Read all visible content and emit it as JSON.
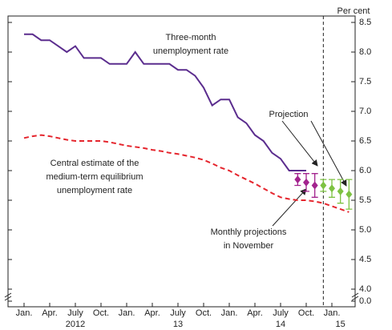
{
  "chart_data": {
    "type": "line",
    "y_label": "Per cent",
    "x": [
      "2012-01",
      "2012-02",
      "2012-03",
      "2012-04",
      "2012-05",
      "2012-06",
      "2012-07",
      "2012-08",
      "2012-09",
      "2012-10",
      "2012-11",
      "2012-12",
      "2013-01",
      "2013-02",
      "2013-03",
      "2013-04",
      "2013-05",
      "2013-06",
      "2013-07",
      "2013-08",
      "2013-09",
      "2013-10",
      "2013-11",
      "2013-12",
      "2014-01",
      "2014-02",
      "2014-03",
      "2014-04",
      "2014-05",
      "2014-06",
      "2014-07",
      "2014-08",
      "2014-09",
      "2014-10",
      "2014-11",
      "2014-12",
      "2015-01",
      "2015-02",
      "2015-03"
    ],
    "xticks": [
      {
        "value": "2012-01",
        "label": "Jan."
      },
      {
        "value": "2012-04",
        "label": "Apr."
      },
      {
        "value": "2012-07",
        "label": "July"
      },
      {
        "value": "2012-10",
        "label": "Oct."
      },
      {
        "value": "2013-01",
        "label": "Jan."
      },
      {
        "value": "2013-04",
        "label": "Apr."
      },
      {
        "value": "2013-07",
        "label": "July"
      },
      {
        "value": "2013-10",
        "label": "Oct."
      },
      {
        "value": "2014-01",
        "label": "Jan."
      },
      {
        "value": "2014-04",
        "label": "Apr."
      },
      {
        "value": "2014-07",
        "label": "July"
      },
      {
        "value": "2014-10",
        "label": "Oct."
      },
      {
        "value": "2015-01",
        "label": "Jan."
      }
    ],
    "year_labels": [
      {
        "value": "2012-07",
        "label": "2012"
      },
      {
        "value": "2013-07",
        "label": "13"
      },
      {
        "value": "2014-07",
        "label": "14"
      },
      {
        "value": "2015-02",
        "label": "15"
      }
    ],
    "ylim": [
      0,
      8.5
    ],
    "axis_break": true,
    "yticks": [
      {
        "value": 0,
        "label": "0.0"
      },
      {
        "value": 4,
        "label": "4.0"
      },
      4.5,
      {
        "value": 5,
        "label": "5.0"
      },
      5.5,
      {
        "value": 6,
        "label": "6.0"
      },
      6.5,
      {
        "value": 7,
        "label": "7.0"
      },
      7.5,
      {
        "value": 8,
        "label": "8.0"
      },
      8.5
    ],
    "projection_start": "2014-12",
    "series": [
      {
        "style": "solid",
        "color": "#5b2d8e",
        "values": [
          8.3,
          8.3,
          8.2,
          8.2,
          8.1,
          8.0,
          8.1,
          7.9,
          7.9,
          7.9,
          7.8,
          7.8,
          7.8,
          8.0,
          7.8,
          7.8,
          7.8,
          7.8,
          7.7,
          7.7,
          7.6,
          7.4,
          7.1,
          7.2,
          7.2,
          6.9,
          6.8,
          6.6,
          6.5,
          6.3,
          6.2,
          6.0,
          6.0,
          6.0,
          null,
          null,
          null,
          null,
          null
        ]
      },
      {
        "style": "dashed",
        "color": "#e5252d",
        "values": [
          6.55,
          6.58,
          6.6,
          6.58,
          6.55,
          6.52,
          6.5,
          6.5,
          6.5,
          6.5,
          6.48,
          6.45,
          6.42,
          6.4,
          6.38,
          6.35,
          6.33,
          6.3,
          6.28,
          6.25,
          6.22,
          6.18,
          6.12,
          6.05,
          6.0,
          5.92,
          5.85,
          5.78,
          5.7,
          5.62,
          5.55,
          5.52,
          5.5,
          5.5,
          5.48,
          5.45,
          5.4,
          5.35,
          5.3
        ]
      },
      {
        "style": "markers",
        "color": "#a3238e",
        "values": [
          null,
          null,
          null,
          null,
          null,
          null,
          null,
          null,
          null,
          null,
          null,
          null,
          null,
          null,
          null,
          null,
          null,
          null,
          null,
          null,
          null,
          null,
          null,
          null,
          null,
          null,
          null,
          null,
          null,
          null,
          null,
          null,
          5.85,
          5.8,
          5.75,
          null,
          null,
          null,
          null
        ],
        "errors": [
          null,
          null,
          null,
          null,
          null,
          null,
          null,
          null,
          null,
          null,
          null,
          null,
          null,
          null,
          null,
          null,
          null,
          null,
          null,
          null,
          null,
          null,
          null,
          null,
          null,
          null,
          null,
          null,
          null,
          null,
          null,
          null,
          0.1,
          0.15,
          0.2,
          null,
          null,
          null,
          null
        ]
      },
      {
        "style": "markers",
        "color": "#7dc242",
        "values": [
          null,
          null,
          null,
          null,
          null,
          null,
          null,
          null,
          null,
          null,
          null,
          null,
          null,
          null,
          null,
          null,
          null,
          null,
          null,
          null,
          null,
          null,
          null,
          null,
          null,
          null,
          null,
          null,
          null,
          null,
          null,
          null,
          null,
          null,
          null,
          5.75,
          5.7,
          5.65,
          5.6
        ],
        "errors": [
          null,
          null,
          null,
          null,
          null,
          null,
          null,
          null,
          null,
          null,
          null,
          null,
          null,
          null,
          null,
          null,
          null,
          null,
          null,
          null,
          null,
          null,
          null,
          null,
          null,
          null,
          null,
          null,
          null,
          null,
          null,
          null,
          null,
          null,
          null,
          0.1,
          0.15,
          0.2,
          0.25
        ]
      }
    ],
    "annotations": [
      {
        "lines": [
          "Three-month",
          "unemployment rate"
        ]
      },
      {
        "lines": [
          "Central estimate of the",
          "medium-term equilibrium",
          "unemployment rate"
        ]
      },
      {
        "lines": [
          "Projection"
        ]
      },
      {
        "lines": [
          "Monthly projections",
          "in November"
        ]
      }
    ]
  }
}
